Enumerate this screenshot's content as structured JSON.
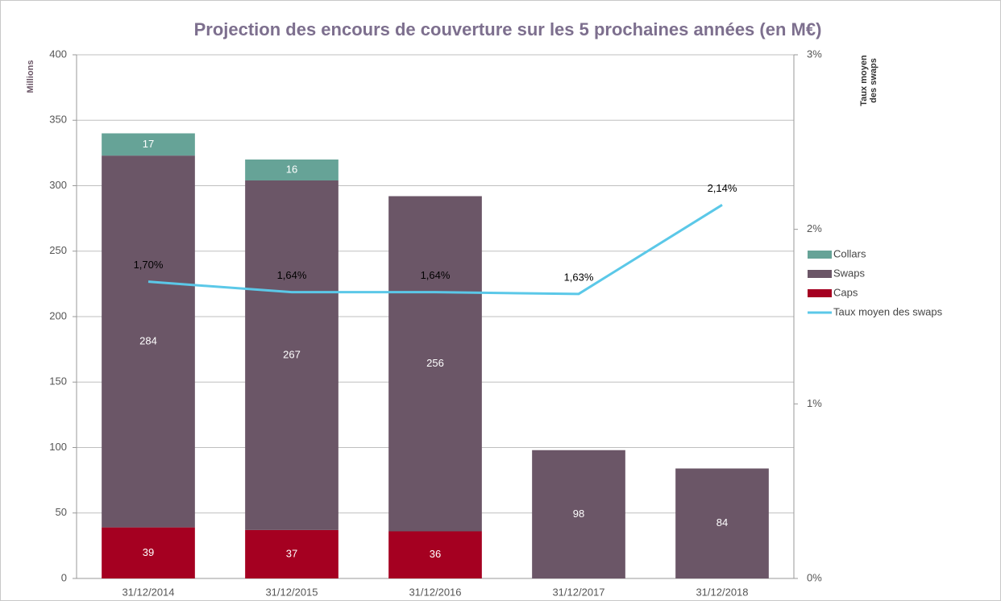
{
  "chart_data": {
    "type": "bar",
    "stacked": true,
    "title": "Projection des encours de couverture sur les 5 prochaines années (en M€)",
    "ylabel": "Millions",
    "y2label": [
      "Taux moyen",
      "des swaps"
    ],
    "categories": [
      "31/12/2014",
      "31/12/2015",
      "31/12/2016",
      "31/12/2017",
      "31/12/2018"
    ],
    "series": [
      {
        "name": "Caps",
        "color": "#a50021",
        "values": [
          39,
          37,
          36,
          null,
          null
        ]
      },
      {
        "name": "Swaps",
        "color": "#6b5667",
        "values": [
          284,
          267,
          256,
          98,
          84
        ]
      },
      {
        "name": "Collars",
        "color": "#66a397",
        "values": [
          17,
          16,
          null,
          null,
          null
        ]
      },
      {
        "name": "Taux moyen des swaps",
        "type": "line",
        "axis": "y2",
        "color": "#5bc8e8",
        "values": [
          1.7,
          1.64,
          1.64,
          1.63,
          2.14
        ],
        "value_labels": [
          "1,70%",
          "1,64%",
          "1,64%",
          "1,63%",
          "2,14%"
        ]
      }
    ],
    "ylim": [
      0,
      400
    ],
    "yticks": [
      0,
      50,
      100,
      150,
      200,
      250,
      300,
      350,
      400
    ],
    "y2lim": [
      0,
      3
    ],
    "y2ticks": [
      {
        "value": 0,
        "label": "0%"
      },
      {
        "value": 1,
        "label": "1%"
      },
      {
        "value": 2,
        "label": "2%"
      },
      {
        "value": 3,
        "label": "3%"
      }
    ],
    "grid": true,
    "legend": "right"
  }
}
